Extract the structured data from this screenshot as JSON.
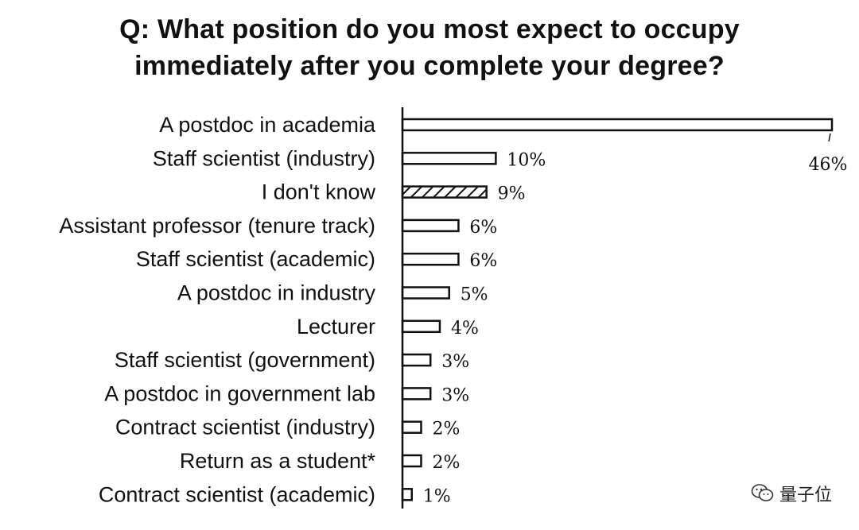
{
  "chart_data": {
    "type": "bar",
    "orientation": "horizontal",
    "title_lines": [
      "Q: What position do you most expect to occupy",
      "immediately after you complete your degree?"
    ],
    "categories": [
      "A postdoc in academia",
      "Staff scientist (industry)",
      "I don't know",
      "Assistant professor (tenure track)",
      "Staff scientist (academic)",
      "A postdoc in industry",
      "Lecturer",
      "Staff scientist (government)",
      "A postdoc in government lab",
      "Contract scientist (industry)",
      "Return as a student*",
      "Contract scientist (academic)"
    ],
    "values": [
      46,
      10,
      9,
      6,
      6,
      5,
      4,
      3,
      3,
      2,
      2,
      1
    ],
    "value_labels": [
      "46%",
      "10%",
      "9%",
      "6%",
      "6%",
      "5%",
      "4%",
      "3%",
      "3%",
      "2%",
      "2%",
      "1%"
    ],
    "hatched": [
      false,
      false,
      true,
      false,
      false,
      false,
      false,
      false,
      false,
      false,
      false,
      false
    ],
    "xlim": [
      0,
      46
    ],
    "grid": false,
    "legend": "none"
  },
  "watermark": {
    "text": "量子位",
    "icon": "wechat-icon"
  }
}
